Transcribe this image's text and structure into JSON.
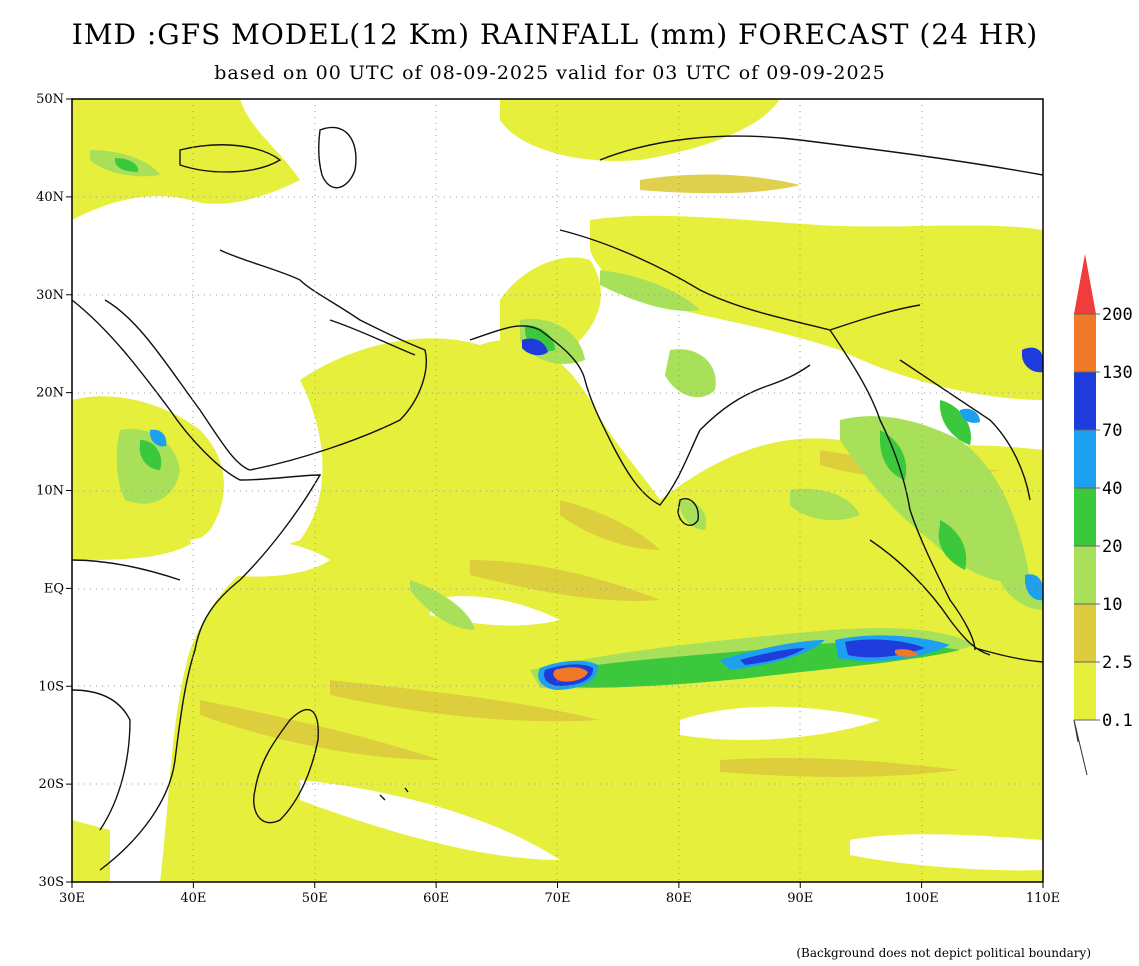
{
  "title": "IMD :GFS MODEL(12 Km) RAINFALL (mm) FORECAST (24 HR)",
  "subtitle": "based on 00 UTC of 08-09-2025 valid for 03 UTC of 09-09-2025",
  "footnote": "(Background does not depict political boundary)",
  "map": {
    "lon_range": [
      30,
      110
    ],
    "lat_range": [
      -30,
      50
    ],
    "lon_ticks": [
      {
        "value": 30,
        "label": "30E"
      },
      {
        "value": 40,
        "label": "40E"
      },
      {
        "value": 50,
        "label": "50E"
      },
      {
        "value": 60,
        "label": "60E"
      },
      {
        "value": 70,
        "label": "70E"
      },
      {
        "value": 80,
        "label": "80E"
      },
      {
        "value": 90,
        "label": "90E"
      },
      {
        "value": 100,
        "label": "100E"
      },
      {
        "value": 110,
        "label": "110E"
      }
    ],
    "lat_ticks": [
      {
        "value": 50,
        "label": "50N"
      },
      {
        "value": 40,
        "label": "40N"
      },
      {
        "value": 30,
        "label": "30N"
      },
      {
        "value": 20,
        "label": "20N"
      },
      {
        "value": 10,
        "label": "10N"
      },
      {
        "value": 0,
        "label": "EQ"
      },
      {
        "value": -10,
        "label": "10S"
      },
      {
        "value": -20,
        "label": "20S"
      },
      {
        "value": -30,
        "label": "30S"
      }
    ],
    "colors": {
      "background": "#ffffff",
      "level_0_1": "#e6f03c",
      "level_2_5": "#dccb3c",
      "level_10": "#a8e05a",
      "level_20": "#3cc83c",
      "level_40": "#1ea0f0",
      "level_70": "#1e3cdc",
      "level_130": "#f07828",
      "level_200": "#f03c3c",
      "coast": "#111111"
    }
  },
  "legend": {
    "levels": [
      "0.1",
      "2.5",
      "10",
      "20",
      "40",
      "70",
      "130",
      "200"
    ],
    "colors": [
      "#e6f03c",
      "#dccb3c",
      "#a8e05a",
      "#3cc83c",
      "#1ea0f0",
      "#1e3cdc",
      "#f07828",
      "#f03c3c"
    ]
  }
}
